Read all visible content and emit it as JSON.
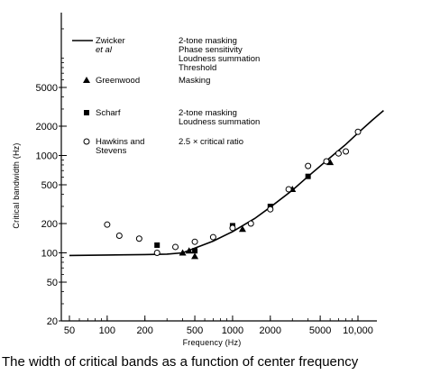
{
  "caption": "The width of critical bands as a function of center frequency",
  "chart_data": {
    "type": "scatter",
    "title": "",
    "xlabel": "Frequency (Hz)",
    "ylabel": "Critical bandwidth (Hz)",
    "xscale": "log",
    "yscale": "log",
    "xlim": [
      40,
      20000
    ],
    "ylim": [
      20,
      20000
    ],
    "x_ticks": [
      50,
      100,
      200,
      500,
      1000,
      2000,
      5000,
      10000
    ],
    "x_tick_labels": [
      "50",
      "100",
      "200",
      "500",
      "1000",
      "2000",
      "5000",
      "10,000"
    ],
    "y_ticks": [
      20,
      50,
      100,
      200,
      500,
      1000,
      2000,
      5000
    ],
    "y_tick_labels": [
      "20",
      "50",
      "100",
      "200",
      "500",
      "1000",
      "2000",
      "5000"
    ],
    "grid": false,
    "legend_position": "top-left",
    "series": [
      {
        "name": "Zwicker et al",
        "marker": "line",
        "description": "2-tone masking\nPhase sensitivity\nLoudness summation\nThreshold",
        "x": [
          50,
          100,
          200,
          300,
          400,
          500,
          700,
          1000,
          1500,
          2000,
          3000,
          4000,
          6000,
          8000,
          10000,
          13000,
          16000
        ],
        "y": [
          94,
          95,
          96,
          97,
          100,
          112,
          132,
          165,
          225,
          295,
          440,
          610,
          950,
          1300,
          1700,
          2300,
          2900
        ]
      },
      {
        "name": "Greenwood",
        "marker": "triangle",
        "description": "Masking",
        "x": [
          400,
          450,
          500,
          1200,
          3000,
          6000
        ],
        "y": [
          100,
          105,
          92,
          175,
          450,
          850
        ]
      },
      {
        "name": "Scharf",
        "marker": "square",
        "description": "2-tone masking\nLoudness summation",
        "x": [
          250,
          500,
          1000,
          2000,
          4000
        ],
        "y": [
          120,
          105,
          190,
          300,
          610
        ]
      },
      {
        "name": "Hawkins and Stevens",
        "marker": "circle",
        "description": "2.5 × critical ratio",
        "x": [
          100,
          125,
          180,
          250,
          350,
          500,
          700,
          1000,
          1400,
          2000,
          2800,
          4000,
          5600,
          7000,
          8000,
          10000
        ],
        "y": [
          195,
          150,
          140,
          100,
          115,
          130,
          145,
          180,
          200,
          280,
          450,
          780,
          870,
          1050,
          1100,
          1750
        ]
      }
    ]
  }
}
